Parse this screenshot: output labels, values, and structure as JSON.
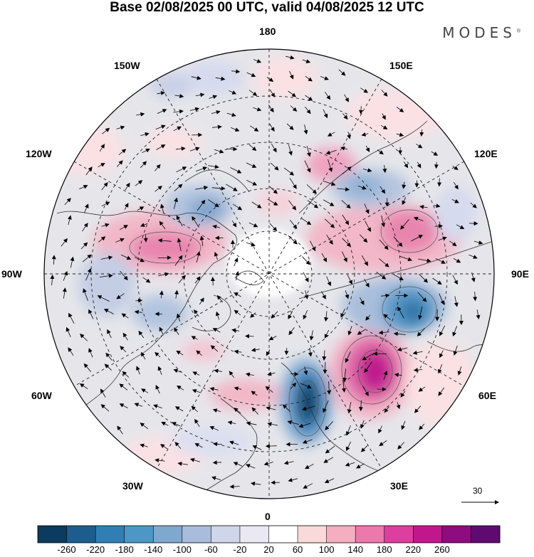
{
  "header": {
    "title": "Base 02/08/2025 00 UTC, valid 04/08/2025 12 UTC",
    "brand": "MODES",
    "brand_mark": "®"
  },
  "map": {
    "projection": "north-polar-stereographic",
    "longitude_labels": {
      "top": "180",
      "top_right": "150E",
      "right_upper": "120E",
      "right": "90E",
      "right_lower": "60E",
      "bottom_right": "30E",
      "bottom": "0",
      "bottom_left": "30W",
      "left_lower": "60W",
      "left": "90W",
      "left_upper": "120W",
      "top_left": "150W"
    },
    "vector_reference": {
      "value": "30",
      "icon": "arrow-right-icon"
    }
  },
  "colorbar": {
    "ticks": [
      "-260",
      "-220",
      "-180",
      "-140",
      "-100",
      "-60",
      "-20",
      "20",
      "60",
      "100",
      "140",
      "180",
      "220",
      "260"
    ],
    "colors": [
      "#0b3b5e",
      "#1b5d8f",
      "#2f7fb5",
      "#4d97c6",
      "#7ea9cf",
      "#a9bcdb",
      "#cfd5ea",
      "#e9e8f3",
      "#ffffff",
      "#f9d9d9",
      "#f4aec0",
      "#ec78ac",
      "#dc3f9f",
      "#c2168f",
      "#8e0c7f",
      "#5e0a70"
    ]
  }
}
